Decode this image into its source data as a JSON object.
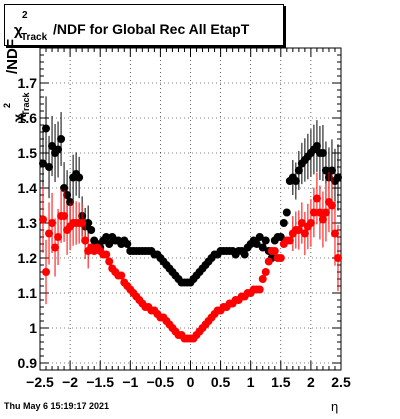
{
  "chart_data": {
    "type": "scatter",
    "title": "χ²_Track/NDF for Global Rec All EtapT",
    "title_parts": {
      "chi": "χ",
      "sup": "2",
      "sub": "Track",
      "rest": "/NDF for Global Rec All EtapT"
    },
    "ylabel_parts": {
      "chi": "χ",
      "sup": "2",
      "sub": "Track",
      "rest": "/NDF"
    },
    "xlabel": "η",
    "xlim": [
      -2.5,
      2.5
    ],
    "ylim": [
      0.88,
      1.8
    ],
    "xticks": [
      "−2.5",
      "−2",
      "−1.5",
      "−1",
      "−0.5",
      "0",
      "0.5",
      "1",
      "1.5",
      "2",
      "2.5"
    ],
    "xtick_values": [
      -2.5,
      -2,
      -1.5,
      -1,
      -0.5,
      0,
      0.5,
      1,
      1.5,
      2,
      2.5
    ],
    "yticks": [
      "0.9",
      "1",
      "1.1",
      "1.2",
      "1.3",
      "1.4",
      "1.5",
      "1.6",
      "1.7"
    ],
    "ytick_values": [
      0.9,
      1.0,
      1.1,
      1.2,
      1.3,
      1.4,
      1.5,
      1.6,
      1.7
    ],
    "grid": true,
    "series": [
      {
        "color": "#000000",
        "x": [
          -2.45,
          -2.4,
          -2.35,
          -2.3,
          -2.25,
          -2.2,
          -2.15,
          -2.1,
          -2.05,
          -2.0,
          -1.95,
          -1.9,
          -1.85,
          -1.8,
          -1.75,
          -1.7,
          -1.65,
          -1.6,
          -1.55,
          -1.5,
          -1.45,
          -1.4,
          -1.35,
          -1.3,
          -1.25,
          -1.2,
          -1.15,
          -1.1,
          -1.05,
          -1.0,
          -0.95,
          -0.9,
          -0.85,
          -0.8,
          -0.75,
          -0.7,
          -0.65,
          -0.6,
          -0.55,
          -0.5,
          -0.45,
          -0.4,
          -0.35,
          -0.3,
          -0.25,
          -0.2,
          -0.15,
          -0.1,
          -0.05,
          0.0,
          0.05,
          0.1,
          0.15,
          0.2,
          0.25,
          0.3,
          0.35,
          0.4,
          0.45,
          0.5,
          0.55,
          0.6,
          0.65,
          0.7,
          0.75,
          0.8,
          0.85,
          0.9,
          0.95,
          1.0,
          1.05,
          1.1,
          1.15,
          1.2,
          1.25,
          1.3,
          1.35,
          1.4,
          1.45,
          1.5,
          1.55,
          1.6,
          1.65,
          1.7,
          1.75,
          1.8,
          1.85,
          1.9,
          1.95,
          2.0,
          2.05,
          2.1,
          2.15,
          2.2,
          2.25,
          2.3,
          2.35,
          2.4,
          2.45
        ],
        "y": [
          1.47,
          1.57,
          1.46,
          1.52,
          1.5,
          1.51,
          1.54,
          1.4,
          1.38,
          1.36,
          1.43,
          1.44,
          1.43,
          1.32,
          1.29,
          1.3,
          1.28,
          1.25,
          1.24,
          1.23,
          1.25,
          1.26,
          1.24,
          1.26,
          1.25,
          1.25,
          1.24,
          1.25,
          1.24,
          1.22,
          1.22,
          1.22,
          1.22,
          1.22,
          1.22,
          1.22,
          1.22,
          1.21,
          1.21,
          1.2,
          1.19,
          1.18,
          1.17,
          1.16,
          1.15,
          1.14,
          1.13,
          1.13,
          1.13,
          1.13,
          1.14,
          1.15,
          1.16,
          1.17,
          1.18,
          1.19,
          1.2,
          1.21,
          1.21,
          1.22,
          1.22,
          1.22,
          1.22,
          1.22,
          1.21,
          1.22,
          1.22,
          1.21,
          1.23,
          1.24,
          1.25,
          1.24,
          1.26,
          1.23,
          1.25,
          1.22,
          1.2,
          1.25,
          1.26,
          1.26,
          1.3,
          1.33,
          1.42,
          1.43,
          1.42,
          1.45,
          1.47,
          1.48,
          1.49,
          1.5,
          1.51,
          1.52,
          1.5,
          1.5,
          1.45,
          1.43,
          1.45,
          1.42,
          1.43
        ]
      },
      {
        "color": "#ff0000",
        "x": [
          -2.45,
          -2.4,
          -2.35,
          -2.3,
          -2.25,
          -2.2,
          -2.15,
          -2.1,
          -2.05,
          -2.0,
          -1.95,
          -1.9,
          -1.85,
          -1.8,
          -1.75,
          -1.7,
          -1.65,
          -1.6,
          -1.55,
          -1.5,
          -1.45,
          -1.4,
          -1.35,
          -1.3,
          -1.25,
          -1.2,
          -1.15,
          -1.1,
          -1.05,
          -1.0,
          -0.95,
          -0.9,
          -0.85,
          -0.8,
          -0.75,
          -0.7,
          -0.65,
          -0.6,
          -0.55,
          -0.5,
          -0.45,
          -0.4,
          -0.35,
          -0.3,
          -0.25,
          -0.2,
          -0.15,
          -0.1,
          -0.05,
          0.0,
          0.05,
          0.1,
          0.15,
          0.2,
          0.25,
          0.3,
          0.35,
          0.4,
          0.45,
          0.5,
          0.55,
          0.6,
          0.65,
          0.7,
          0.75,
          0.8,
          0.85,
          0.9,
          0.95,
          1.0,
          1.05,
          1.1,
          1.15,
          1.2,
          1.25,
          1.3,
          1.35,
          1.4,
          1.45,
          1.5,
          1.55,
          1.6,
          1.65,
          1.7,
          1.75,
          1.8,
          1.85,
          1.9,
          1.95,
          2.0,
          2.05,
          2.1,
          2.15,
          2.2,
          2.25,
          2.3,
          2.35,
          2.4,
          2.45
        ],
        "y": [
          1.31,
          1.16,
          1.27,
          1.3,
          1.23,
          1.26,
          1.32,
          1.32,
          1.28,
          1.29,
          1.3,
          1.3,
          1.3,
          1.3,
          1.25,
          1.22,
          1.23,
          1.22,
          1.23,
          1.22,
          1.21,
          1.21,
          1.19,
          1.17,
          1.16,
          1.15,
          1.15,
          1.13,
          1.12,
          1.11,
          1.1,
          1.09,
          1.08,
          1.07,
          1.06,
          1.06,
          1.05,
          1.05,
          1.04,
          1.03,
          1.03,
          1.02,
          1.01,
          1.0,
          0.99,
          0.98,
          0.98,
          0.97,
          0.97,
          0.97,
          0.97,
          0.98,
          0.99,
          1.0,
          1.01,
          1.02,
          1.03,
          1.04,
          1.05,
          1.05,
          1.06,
          1.06,
          1.07,
          1.07,
          1.08,
          1.08,
          1.09,
          1.09,
          1.1,
          1.1,
          1.11,
          1.11,
          1.11,
          1.14,
          1.16,
          1.19,
          1.22,
          1.22,
          1.2,
          1.2,
          1.24,
          1.25,
          1.25,
          1.27,
          1.28,
          1.28,
          1.3,
          1.27,
          1.29,
          1.3,
          1.33,
          1.37,
          1.33,
          1.31,
          1.33,
          1.36,
          1.35,
          1.27,
          1.2
        ]
      }
    ],
    "footer_date": "Thu May  6 15:19:17 2021"
  }
}
